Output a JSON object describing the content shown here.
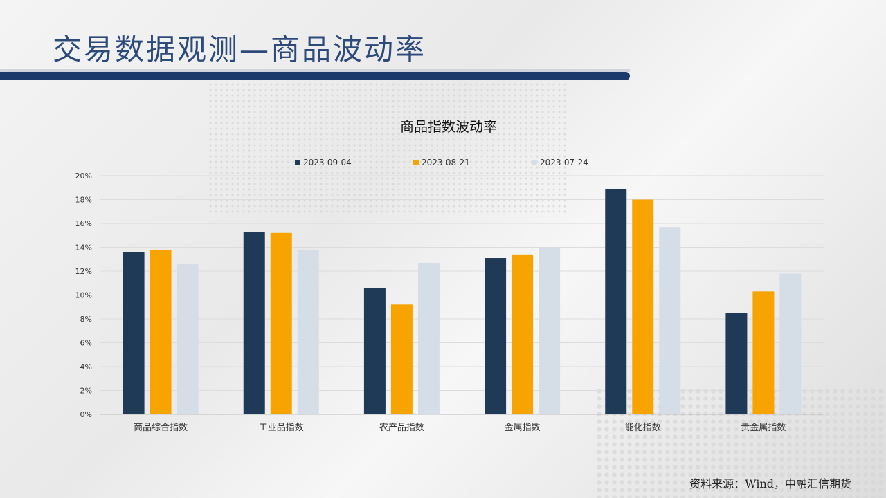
{
  "page_title": "交易数据观测—商品波动率",
  "source_note": "资料来源：Wind，中融汇信期货",
  "colors": {
    "title": "#2c4a7a",
    "bar_dark": "#1f3a57",
    "bar_orange": "#f7a400",
    "bar_light": "#d5dde6"
  },
  "chart_data": {
    "type": "bar",
    "title": "商品指数波动率",
    "xlabel": "",
    "ylabel": "",
    "categories": [
      "商品综合指数",
      "工业品指数",
      "农产品指数",
      "金属指数",
      "能化指数",
      "贵金属指数"
    ],
    "series": [
      {
        "name": "2023-09-04",
        "color": "#1f3a57",
        "values": [
          13.6,
          15.3,
          10.6,
          13.1,
          18.9,
          8.5
        ]
      },
      {
        "name": "2023-08-21",
        "color": "#f7a400",
        "values": [
          13.8,
          15.2,
          9.2,
          13.4,
          18.0,
          10.3
        ]
      },
      {
        "name": "2023-07-24",
        "color": "#d5dde6",
        "values": [
          12.6,
          13.8,
          12.7,
          14.0,
          15.7,
          11.8
        ]
      }
    ],
    "ylim": [
      0,
      20
    ],
    "yticks": [
      "0%",
      "2%",
      "4%",
      "6%",
      "8%",
      "10%",
      "12%",
      "14%",
      "16%",
      "18%",
      "20%"
    ],
    "grid": true,
    "legend_position": "top"
  }
}
